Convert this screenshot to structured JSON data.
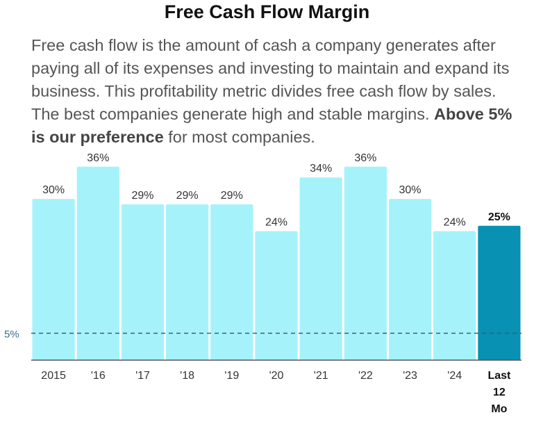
{
  "chart_data": {
    "type": "bar",
    "title": "Free Cash Flow Margin",
    "description": {
      "text_before": "Free cash flow is the amount of cash a company generates after paying all of its expenses and investing to maintain and expand its business. This profitability metric divides free cash flow by sales. The best companies generate high and stable margins.",
      "emphasis": "Above 5% is our preference",
      "text_after": "for most companies."
    },
    "categories": [
      "2015",
      "'16",
      "'17",
      "'18",
      "'19",
      "'20",
      "'21",
      "'22",
      "'23",
      "'24",
      "Last 12 Mo"
    ],
    "values": [
      30,
      36,
      29,
      29,
      29,
      24,
      34,
      36,
      30,
      24,
      25
    ],
    "value_labels": [
      "30%",
      "36%",
      "29%",
      "29%",
      "29%",
      "24%",
      "34%",
      "36%",
      "30%",
      "24%",
      "25%"
    ],
    "highlight_index": 10,
    "reference_line": {
      "value": 5,
      "label": "5%"
    },
    "ylim": [
      0,
      38.3
    ],
    "xlabel": "",
    "ylabel": "",
    "colors": {
      "bar": "#a6f2fb",
      "highlight": "#0891b2",
      "reference": "#3a5f6f",
      "axis": "#555555"
    }
  }
}
